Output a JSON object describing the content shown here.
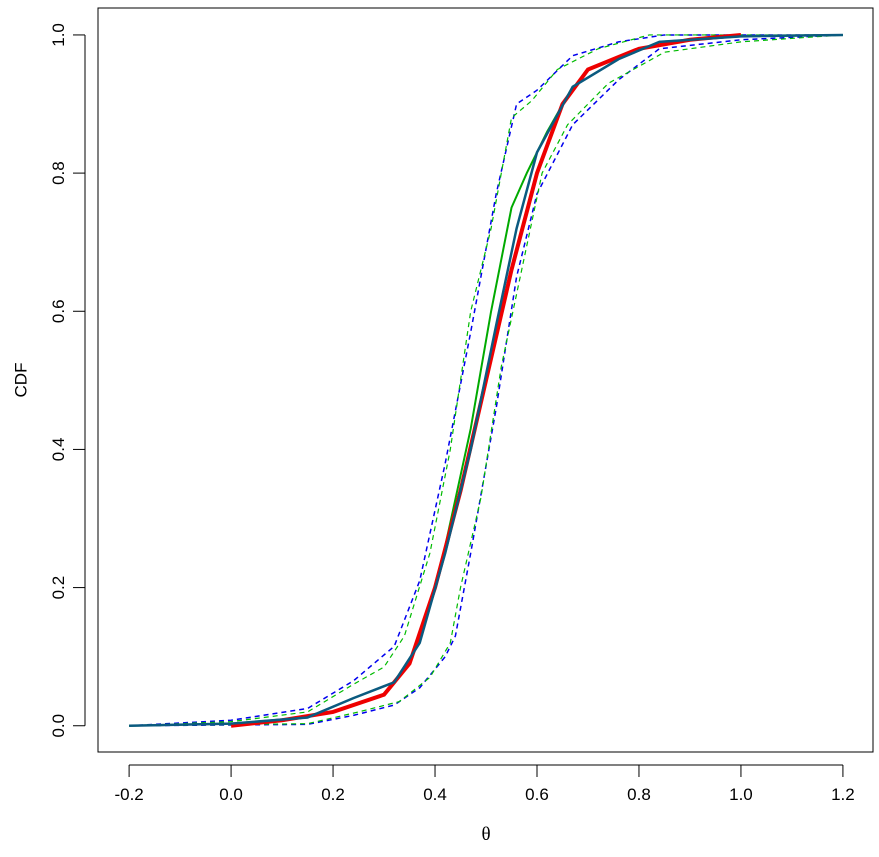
{
  "chart_data": {
    "type": "line",
    "xlabel": "θ",
    "ylabel": "CDF",
    "xlim": [
      -0.261,
      1.259
    ],
    "ylim": [
      -0.038,
      1.039
    ],
    "xticks": [
      -0.2,
      {
        "value": 0,
        "label": "0.0"
      },
      0.2,
      0.4,
      0.6,
      0.8,
      {
        "value": 1,
        "label": "1.0"
      },
      1.2
    ],
    "yticks": [
      {
        "value": 0,
        "label": "0.0"
      },
      0.2,
      0.4,
      0.6,
      0.8,
      {
        "value": 1,
        "label": "1.0"
      }
    ],
    "series": [
      {
        "color": "#0000ee",
        "style": "dashed",
        "width": 1.5,
        "x": [
          -0.2,
          0,
          0.15,
          0.24,
          0.32,
          0.37,
          0.42,
          0.47,
          0.52,
          0.56,
          0.6,
          0.67,
          0.76,
          0.85,
          1.2
        ],
        "values": [
          0,
          0.008,
          0.025,
          0.065,
          0.115,
          0.21,
          0.38,
          0.57,
          0.77,
          0.9,
          0.92,
          0.97,
          0.99,
          1.0,
          1.0
        ]
      },
      {
        "color": "#0000ee",
        "style": "dashed",
        "width": 1.5,
        "x": [
          -0.2,
          0.15,
          0.24,
          0.32,
          0.37,
          0.42,
          0.44,
          0.47,
          0.52,
          0.56,
          0.6,
          0.67,
          0.76,
          0.84,
          1.0,
          1.2
        ],
        "values": [
          0,
          0.002,
          0.015,
          0.03,
          0.055,
          0.1,
          0.13,
          0.25,
          0.46,
          0.65,
          0.77,
          0.87,
          0.935,
          0.98,
          0.993,
          1.0
        ]
      },
      {
        "color": "#00bb00",
        "style": "dashed",
        "width": 1.2,
        "x": [
          -0.2,
          0,
          0.15,
          0.24,
          0.3,
          0.34,
          0.39,
          0.43,
          0.47,
          0.51,
          0.55,
          0.59,
          0.64,
          0.72,
          0.82,
          1.2
        ],
        "values": [
          0,
          0.006,
          0.02,
          0.06,
          0.085,
          0.13,
          0.25,
          0.4,
          0.6,
          0.72,
          0.88,
          0.905,
          0.95,
          0.98,
          1.0,
          1.0
        ]
      },
      {
        "color": "#00bb00",
        "style": "dashed",
        "width": 1.2,
        "x": [
          -0.2,
          0.15,
          0.25,
          0.33,
          0.39,
          0.43,
          0.45,
          0.49,
          0.53,
          0.57,
          0.61,
          0.66,
          0.74,
          0.85,
          1.0,
          1.2
        ],
        "values": [
          0,
          0.003,
          0.02,
          0.035,
          0.07,
          0.12,
          0.2,
          0.33,
          0.52,
          0.66,
          0.8,
          0.87,
          0.93,
          0.975,
          0.99,
          1.0
        ]
      },
      {
        "color": "#00aa00",
        "style": "solid",
        "width": 2,
        "x": [
          -0.2,
          0,
          0.15,
          0.24,
          0.32,
          0.37,
          0.42,
          0.47,
          0.51,
          0.55,
          0.58,
          0.62,
          0.67,
          0.76,
          0.84,
          1.0,
          1.2
        ],
        "values": [
          0,
          0.003,
          0.012,
          0.04,
          0.063,
          0.12,
          0.26,
          0.43,
          0.6,
          0.75,
          0.8,
          0.86,
          0.925,
          0.965,
          0.99,
          0.998,
          1.0
        ]
      },
      {
        "color": "#ee0000",
        "style": "solid",
        "width": 4,
        "x": [
          0,
          0.1,
          0.2,
          0.3,
          0.35,
          0.4,
          0.45,
          0.5,
          0.55,
          0.6,
          0.65,
          0.7,
          0.8,
          0.9,
          1.0
        ],
        "values": [
          0,
          0.008,
          0.02,
          0.045,
          0.09,
          0.2,
          0.34,
          0.5,
          0.66,
          0.8,
          0.9,
          0.95,
          0.98,
          0.993,
          1.0
        ]
      },
      {
        "color": "#0b5a80",
        "style": "solid",
        "width": 2.5,
        "x": [
          -0.2,
          0,
          0.15,
          0.24,
          0.32,
          0.37,
          0.42,
          0.47,
          0.52,
          0.56,
          0.6,
          0.67,
          0.76,
          0.84,
          1.0,
          1.2
        ],
        "values": [
          0,
          0.003,
          0.012,
          0.04,
          0.063,
          0.12,
          0.25,
          0.4,
          0.58,
          0.72,
          0.83,
          0.925,
          0.965,
          0.99,
          0.998,
          1.0
        ]
      }
    ]
  }
}
